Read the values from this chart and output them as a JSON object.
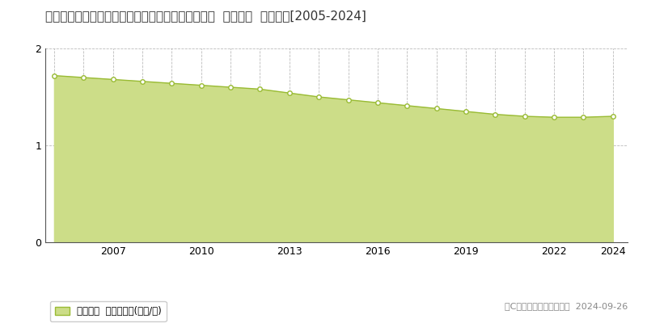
{
  "title": "佐賀県杵島郡白石町大字福富下分字大福３１９５番  基準地価  地価推移[2005-2024]",
  "years": [
    2005,
    2006,
    2007,
    2008,
    2009,
    2010,
    2011,
    2012,
    2013,
    2014,
    2015,
    2016,
    2017,
    2018,
    2019,
    2020,
    2021,
    2022,
    2023,
    2024
  ],
  "values": [
    1.72,
    1.7,
    1.68,
    1.66,
    1.64,
    1.62,
    1.6,
    1.58,
    1.54,
    1.5,
    1.47,
    1.44,
    1.41,
    1.38,
    1.35,
    1.32,
    1.3,
    1.29,
    1.29,
    1.3
  ],
  "line_color": "#99bb33",
  "fill_color": "#ccdd88",
  "marker_color": "#ffffff",
  "marker_edge_color": "#99bb33",
  "grid_color": "#aaaaaa",
  "background_color": "#ffffff",
  "title_fontsize": 11,
  "legend_label": "基準地価  平均坪単価(万円/坪)",
  "copyright_text": "（C）土地価格ドットコム  2024-09-26",
  "ylim": [
    0,
    2
  ],
  "yticks": [
    0,
    1,
    2
  ],
  "xticks": [
    2007,
    2010,
    2013,
    2016,
    2019,
    2022,
    2024
  ]
}
